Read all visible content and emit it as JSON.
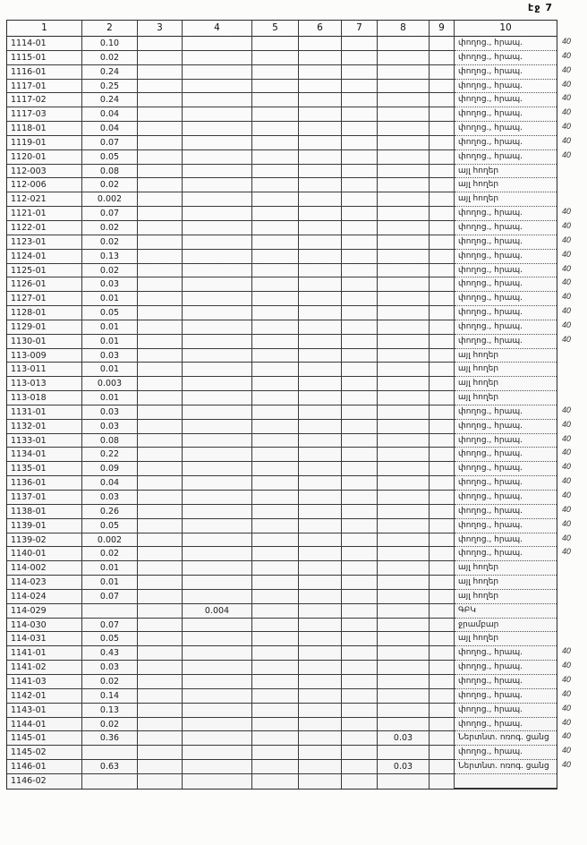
{
  "page": {
    "label": "էջ 7"
  },
  "table": {
    "columns": [
      "1",
      "2",
      "3",
      "4",
      "5",
      "6",
      "7",
      "8",
      "9",
      "10"
    ],
    "rows": [
      {
        "code": "1114-01",
        "v2": "0.10",
        "v4": "",
        "v8": "",
        "land_use": "փողոց., հրապ.",
        "margin": "40"
      },
      {
        "code": "1115-01",
        "v2": "0.02",
        "v4": "",
        "v8": "",
        "land_use": "փողոց., հրապ.",
        "margin": "40"
      },
      {
        "code": "1116-01",
        "v2": "0.24",
        "v4": "",
        "v8": "",
        "land_use": "փողոց., հրապ.",
        "margin": "40"
      },
      {
        "code": "1117-01",
        "v2": "0.25",
        "v4": "",
        "v8": "",
        "land_use": "փողոց., հրապ.",
        "margin": "40"
      },
      {
        "code": "1117-02",
        "v2": "0.24",
        "v4": "",
        "v8": "",
        "land_use": "փողոց., հրապ.",
        "margin": "40"
      },
      {
        "code": "1117-03",
        "v2": "0.04",
        "v4": "",
        "v8": "",
        "land_use": "փողոց., հրապ.",
        "margin": "40"
      },
      {
        "code": "1118-01",
        "v2": "0.04",
        "v4": "",
        "v8": "",
        "land_use": "փողոց., հրապ.",
        "margin": "40"
      },
      {
        "code": "1119-01",
        "v2": "0.07",
        "v4": "",
        "v8": "",
        "land_use": "փողոց., հրապ.",
        "margin": "40"
      },
      {
        "code": "1120-01",
        "v2": "0.05",
        "v4": "",
        "v8": "",
        "land_use": "փողոց., հրապ.",
        "margin": "40"
      },
      {
        "code": "112-003",
        "v2": "0.08",
        "v4": "",
        "v8": "",
        "land_use": "այլ հողեր",
        "margin": ""
      },
      {
        "code": "112-006",
        "v2": "0.02",
        "v4": "",
        "v8": "",
        "land_use": "այլ հողեր",
        "margin": ""
      },
      {
        "code": "112-021",
        "v2": "0.002",
        "v4": "",
        "v8": "",
        "land_use": "այլ հողեր",
        "margin": ""
      },
      {
        "code": "1121-01",
        "v2": "0.07",
        "v4": "",
        "v8": "",
        "land_use": "փողոց., հրապ.",
        "margin": "40"
      },
      {
        "code": "1122-01",
        "v2": "0.02",
        "v4": "",
        "v8": "",
        "land_use": "փողոց., հրապ.",
        "margin": "40"
      },
      {
        "code": "1123-01",
        "v2": "0.02",
        "v4": "",
        "v8": "",
        "land_use": "փողոց., հրապ.",
        "margin": "40"
      },
      {
        "code": "1124-01",
        "v2": "0.13",
        "v4": "",
        "v8": "",
        "land_use": "փողոց., հրապ.",
        "margin": "40"
      },
      {
        "code": "1125-01",
        "v2": "0.02",
        "v4": "",
        "v8": "",
        "land_use": "փողոց., հրապ.",
        "margin": "40"
      },
      {
        "code": "1126-01",
        "v2": "0.03",
        "v4": "",
        "v8": "",
        "land_use": "փողոց., հրապ.",
        "margin": "40"
      },
      {
        "code": "1127-01",
        "v2": "0.01",
        "v4": "",
        "v8": "",
        "land_use": "փողոց., հրապ.",
        "margin": "40"
      },
      {
        "code": "1128-01",
        "v2": "0.05",
        "v4": "",
        "v8": "",
        "land_use": "փողոց., հրապ.",
        "margin": "40"
      },
      {
        "code": "1129-01",
        "v2": "0.01",
        "v4": "",
        "v8": "",
        "land_use": "փողոց., հրապ.",
        "margin": "40"
      },
      {
        "code": "1130-01",
        "v2": "0.01",
        "v4": "",
        "v8": "",
        "land_use": "փողոց., հրապ.",
        "margin": "40"
      },
      {
        "code": "113-009",
        "v2": "0.03",
        "v4": "",
        "v8": "",
        "land_use": "այլ հողեր",
        "margin": ""
      },
      {
        "code": "113-011",
        "v2": "0.01",
        "v4": "",
        "v8": "",
        "land_use": "այլ հողեր",
        "margin": ""
      },
      {
        "code": "113-013",
        "v2": "0.003",
        "v4": "",
        "v8": "",
        "land_use": "այլ հողեր",
        "margin": ""
      },
      {
        "code": "113-018",
        "v2": "0.01",
        "v4": "",
        "v8": "",
        "land_use": "այլ հողեր",
        "margin": ""
      },
      {
        "code": "1131-01",
        "v2": "0.03",
        "v4": "",
        "v8": "",
        "land_use": "փողոց., հրապ.",
        "margin": "40"
      },
      {
        "code": "1132-01",
        "v2": "0.03",
        "v4": "",
        "v8": "",
        "land_use": "փողոց., հրապ.",
        "margin": "40"
      },
      {
        "code": "1133-01",
        "v2": "0.08",
        "v4": "",
        "v8": "",
        "land_use": "փողոց., հրապ.",
        "margin": "40"
      },
      {
        "code": "1134-01",
        "v2": "0.22",
        "v4": "",
        "v8": "",
        "land_use": "փողոց., հրապ.",
        "margin": "40"
      },
      {
        "code": "1135-01",
        "v2": "0.09",
        "v4": "",
        "v8": "",
        "land_use": "փողոց., հրապ.",
        "margin": "40"
      },
      {
        "code": "1136-01",
        "v2": "0.04",
        "v4": "",
        "v8": "",
        "land_use": "փողոց., հրապ.",
        "margin": "40"
      },
      {
        "code": "1137-01",
        "v2": "0.03",
        "v4": "",
        "v8": "",
        "land_use": "փողոց., հրապ.",
        "margin": "40"
      },
      {
        "code": "1138-01",
        "v2": "0.26",
        "v4": "",
        "v8": "",
        "land_use": "փողոց., հրապ.",
        "margin": "40"
      },
      {
        "code": "1139-01",
        "v2": "0.05",
        "v4": "",
        "v8": "",
        "land_use": "փողոց., հրապ.",
        "margin": "40"
      },
      {
        "code": "1139-02",
        "v2": "0.002",
        "v4": "",
        "v8": "",
        "land_use": "փողոց., հրապ.",
        "margin": "40"
      },
      {
        "code": "1140-01",
        "v2": "0.02",
        "v4": "",
        "v8": "",
        "land_use": "փողոց., հրապ.",
        "margin": "40"
      },
      {
        "code": "114-002",
        "v2": "0.01",
        "v4": "",
        "v8": "",
        "land_use": "այլ հողեր",
        "margin": ""
      },
      {
        "code": "114-023",
        "v2": "0.01",
        "v4": "",
        "v8": "",
        "land_use": "այլ հողեր",
        "margin": ""
      },
      {
        "code": "114-024",
        "v2": "0.07",
        "v4": "",
        "v8": "",
        "land_use": "այլ հողեր",
        "margin": ""
      },
      {
        "code": "114-029",
        "v2": "",
        "v4": "0.004",
        "v8": "",
        "land_use": "ԳԲԿ",
        "margin": ""
      },
      {
        "code": "114-030",
        "v2": "0.07",
        "v4": "",
        "v8": "",
        "land_use": "ջրամբար",
        "margin": ""
      },
      {
        "code": "114-031",
        "v2": "0.05",
        "v4": "",
        "v8": "",
        "land_use": "այլ հողեր",
        "margin": ""
      },
      {
        "code": "1141-01",
        "v2": "0.43",
        "v4": "",
        "v8": "",
        "land_use": "փողոց., հրապ.",
        "margin": "40"
      },
      {
        "code": "1141-02",
        "v2": "0.03",
        "v4": "",
        "v8": "",
        "land_use": "փողոց., հրապ.",
        "margin": "40"
      },
      {
        "code": "1141-03",
        "v2": "0.02",
        "v4": "",
        "v8": "",
        "land_use": "փողոց., հրապ.",
        "margin": "40"
      },
      {
        "code": "1142-01",
        "v2": "0.14",
        "v4": "",
        "v8": "",
        "land_use": "փողոց., հրապ.",
        "margin": "40"
      },
      {
        "code": "1143-01",
        "v2": "0.13",
        "v4": "",
        "v8": "",
        "land_use": "փողոց., հրապ.",
        "margin": "40"
      },
      {
        "code": "1144-01",
        "v2": "0.02",
        "v4": "",
        "v8": "",
        "land_use": "փողոց., հրապ.",
        "margin": "40"
      },
      {
        "code": "1145-01",
        "v2": "0.36",
        "v4": "",
        "v8": "0.03",
        "land_use": "Ներտնտ. ոռոգ. ցանց",
        "margin": "40"
      },
      {
        "code": "1145-02",
        "v2": "",
        "v4": "",
        "v8": "",
        "land_use": "փողոց., հրապ.",
        "margin": "40"
      },
      {
        "code": "1146-01",
        "v2": "0.63",
        "v4": "",
        "v8": "0.03",
        "land_use": "Ներտնտ. ոռոգ. ցանց",
        "margin": "40"
      },
      {
        "code": "1146-02",
        "v2": "",
        "v4": "",
        "v8": "",
        "land_use": "",
        "margin": ""
      }
    ]
  }
}
